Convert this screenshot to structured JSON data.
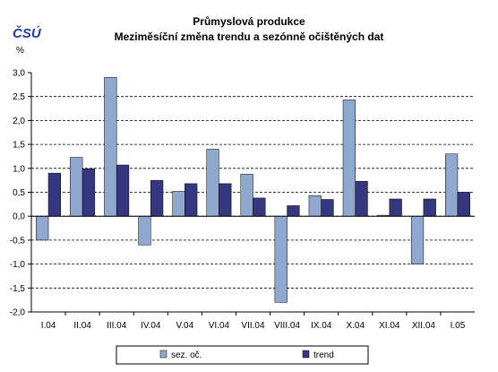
{
  "logo": {
    "text": "ČSÚ",
    "color": "#1f3f9a"
  },
  "colors": {
    "series1": "#8fa8cf",
    "series2": "#343880",
    "grid": "#000000"
  },
  "chart_data": {
    "type": "bar",
    "title": "Průmyslová produkce",
    "subtitle": "Meziměsíční změna trendu a sezónně očištěných dat",
    "ylabel": "%",
    "ylim": [
      -2.0,
      3.0
    ],
    "yticks": [
      "3,0",
      "2,5",
      "2,0",
      "1,5",
      "1,0",
      "0,5",
      "0,0",
      "-0,5",
      "-1,0",
      "-1,5",
      "-2,0"
    ],
    "grid": true,
    "legend_position": "bottom",
    "categories": [
      "I.04",
      "II.04",
      "III.04",
      "IV.04",
      "V.04",
      "VI.04",
      "VII.04",
      "VIII.04",
      "IX.04",
      "X.04",
      "XI.04",
      "XII.04",
      "I.05"
    ],
    "series": [
      {
        "name": "sez. oč.",
        "values": [
          -0.5,
          1.23,
          2.9,
          -0.6,
          0.52,
          1.4,
          0.88,
          -1.8,
          0.43,
          2.43,
          0.02,
          -1.0,
          1.3
        ]
      },
      {
        "name": "trend",
        "values": [
          0.9,
          0.99,
          1.07,
          0.75,
          0.68,
          0.68,
          0.38,
          0.22,
          0.35,
          0.73,
          0.36,
          0.36,
          0.5
        ]
      }
    ]
  }
}
